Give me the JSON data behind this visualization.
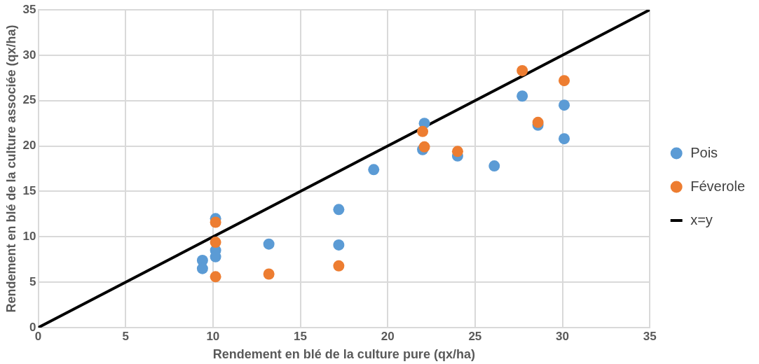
{
  "chart_data": {
    "type": "scatter",
    "xlabel": "Rendement en blé de la culture pure (qx/ha)",
    "ylabel": "Rendement en blé de la culture associée (qx/ha)",
    "xlim": [
      0,
      35
    ],
    "ylim": [
      0,
      35
    ],
    "xticks": [
      0,
      5,
      10,
      15,
      20,
      25,
      30,
      35
    ],
    "yticks": [
      0,
      5,
      10,
      15,
      20,
      25,
      30,
      35
    ],
    "grid": true,
    "legend": "right",
    "marker": "circle",
    "series": [
      {
        "name": "Pois",
        "color": "#5b9bd5",
        "x": [
          10.15,
          10.15,
          10.15,
          9.4,
          9.4,
          13.2,
          17.2,
          17.2,
          19.2,
          22.0,
          22.1,
          24.0,
          26.1,
          27.7,
          28.6,
          30.1,
          30.1
        ],
        "values": [
          12.0,
          8.5,
          7.8,
          7.4,
          6.5,
          9.2,
          13.0,
          9.1,
          17.4,
          19.6,
          22.5,
          18.9,
          17.8,
          25.5,
          22.3,
          24.5,
          20.8
        ]
      },
      {
        "name": "Féverole",
        "color": "#ed7d31",
        "x": [
          10.15,
          10.15,
          10.15,
          13.2,
          17.2,
          22.0,
          22.1,
          24.0,
          27.7,
          28.6,
          30.1
        ],
        "values": [
          11.6,
          9.4,
          5.6,
          5.9,
          6.8,
          21.6,
          19.9,
          19.4,
          28.3,
          22.6,
          27.2
        ]
      },
      {
        "name": "x=y",
        "type": "line",
        "color": "#000000",
        "marker": "none",
        "x": [
          0,
          35
        ],
        "values": [
          0,
          35
        ]
      }
    ]
  }
}
